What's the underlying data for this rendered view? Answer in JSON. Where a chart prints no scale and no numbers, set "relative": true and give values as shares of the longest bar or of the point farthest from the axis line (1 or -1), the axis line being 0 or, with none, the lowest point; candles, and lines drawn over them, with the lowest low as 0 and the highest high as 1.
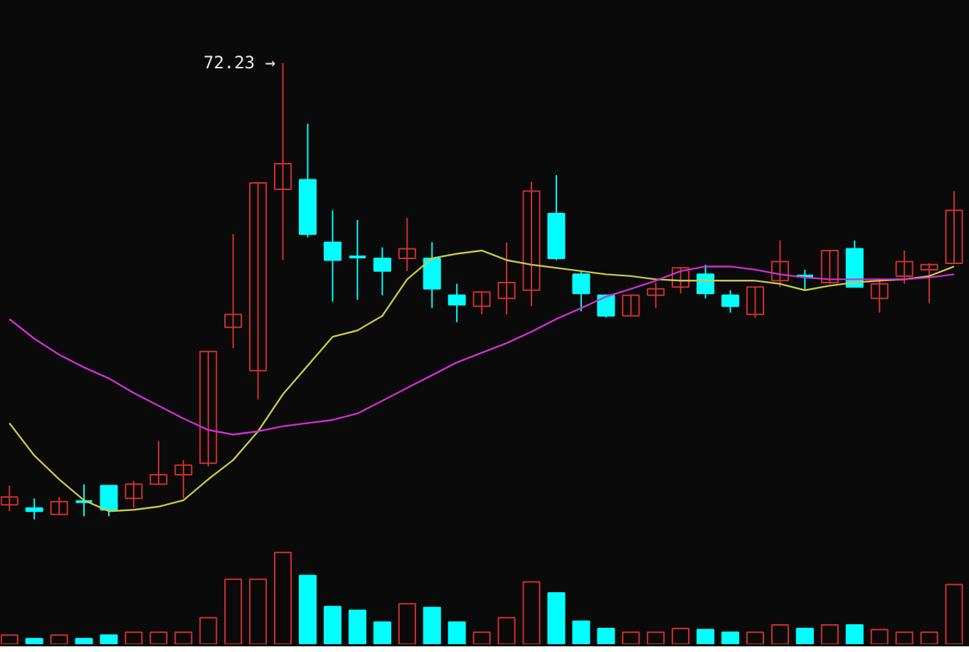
{
  "chart_data": [
    {
      "type": "candlestick",
      "relative": true,
      "categories": [
        null,
        null,
        null,
        null,
        null,
        null,
        null,
        null,
        null,
        null,
        null,
        null,
        null,
        null,
        null,
        null,
        null,
        null,
        null,
        null,
        null,
        null,
        null,
        null,
        null,
        null,
        null,
        null,
        null,
        null,
        null,
        null,
        null,
        null,
        null,
        null,
        null,
        null,
        null
      ],
      "annotations": [
        "72.23 →"
      ],
      "ohlc": [
        [
          0.032,
          0.074,
          0.018,
          0.049
        ],
        [
          0.025,
          0.046,
          0,
          0.018
        ],
        [
          0.011,
          0.049,
          0.011,
          0.039
        ],
        [
          0.039,
          0.077,
          0.007,
          0.035
        ],
        [
          0.074,
          0.074,
          0.007,
          0.021
        ],
        [
          0.046,
          0.084,
          0.025,
          0.077
        ],
        [
          0.077,
          0.172,
          0.077,
          0.098
        ],
        [
          0.098,
          0.13,
          0.046,
          0.119
        ],
        [
          0.123,
          0.368,
          0.116,
          0.368
        ],
        [
          0.421,
          0.625,
          0.375,
          0.449
        ],
        [
          0.326,
          0.737,
          0.263,
          0.737
        ],
        [
          0.723,
          1,
          0.568,
          0.779
        ],
        [
          0.744,
          0.867,
          0.618,
          0.625
        ],
        [
          0.607,
          0.677,
          0.477,
          0.568
        ],
        [
          0.575,
          0.656,
          0.481,
          0.572
        ],
        [
          0.572,
          0.596,
          0.491,
          0.544
        ],
        [
          0.572,
          0.66,
          0.544,
          0.593
        ],
        [
          0.572,
          0.607,
          0.463,
          0.505
        ],
        [
          0.491,
          0.516,
          0.432,
          0.47
        ],
        [
          0.467,
          0.498,
          0.449,
          0.498
        ],
        [
          0.484,
          0.607,
          0.449,
          0.519
        ],
        [
          0.502,
          0.74,
          0.467,
          0.719
        ],
        [
          0.67,
          0.754,
          0.568,
          0.572
        ],
        [
          0.537,
          0.544,
          0.456,
          0.495
        ],
        [
          0.491,
          0.491,
          0.442,
          0.446
        ],
        [
          0.446,
          0.491,
          0.446,
          0.491
        ],
        [
          0.491,
          0.519,
          0.463,
          0.505
        ],
        [
          0.509,
          0.551,
          0.495,
          0.551
        ],
        [
          0.537,
          0.558,
          0.484,
          0.495
        ],
        [
          0.491,
          0.502,
          0.453,
          0.467
        ],
        [
          0.449,
          0.509,
          0.442,
          0.509
        ],
        [
          0.523,
          0.611,
          0.509,
          0.565
        ],
        [
          0.533,
          0.547,
          0.502,
          0.53
        ],
        [
          0.519,
          0.589,
          0.516,
          0.589
        ],
        [
          0.593,
          0.611,
          0.509,
          0.509
        ],
        [
          0.484,
          0.526,
          0.453,
          0.516
        ],
        [
          0.533,
          0.589,
          0.516,
          0.565
        ],
        [
          0.547,
          0.561,
          0.474,
          0.558
        ],
        [
          0.561,
          0.719,
          0.561,
          0.677
        ]
      ],
      "colors": [
        "#d03030",
        "#00ffff",
        "#d03030",
        "#00ffff",
        "#00ffff",
        "#d03030",
        "#d03030",
        "#d03030",
        "#d03030",
        "#d03030",
        "#d03030",
        "#d03030",
        "#00ffff",
        "#00ffff",
        "#00ffff",
        "#00ffff",
        "#d03030",
        "#00ffff",
        "#00ffff",
        "#d03030",
        "#d03030",
        "#d03030",
        "#00ffff",
        "#00ffff",
        "#00ffff",
        "#d03030",
        "#d03030",
        "#d03030",
        "#00ffff",
        "#00ffff",
        "#d03030",
        "#d03030",
        "#00ffff",
        "#d03030",
        "#00ffff",
        "#d03030",
        "#d03030",
        "#d03030",
        "#d03030"
      ],
      "series": [
        {
          "type": "line",
          "color": "#c8c84a",
          "values": [
            0.211,
            0.14,
            0.088,
            0.042,
            0.018,
            0.021,
            0.028,
            0.042,
            0.088,
            0.13,
            0.193,
            0.274,
            0.337,
            0.4,
            0.414,
            0.446,
            0.526,
            0.572,
            0.582,
            0.589,
            0.568,
            0.558,
            0.551,
            0.544,
            0.537,
            0.533,
            0.526,
            0.523,
            0.523,
            0.523,
            0.523,
            0.516,
            0.502,
            0.512,
            0.519,
            0.523,
            0.526,
            0.533,
            0.554
          ]
        },
        {
          "type": "line",
          "color": "#d030d0",
          "values": [
            0.439,
            0.396,
            0.361,
            0.333,
            0.309,
            0.277,
            0.249,
            0.221,
            0.196,
            0.186,
            0.193,
            0.204,
            0.211,
            0.218,
            0.232,
            0.26,
            0.288,
            0.316,
            0.344,
            0.365,
            0.386,
            0.411,
            0.439,
            0.463,
            0.488,
            0.505,
            0.523,
            0.544,
            0.554,
            0.554,
            0.547,
            0.537,
            0.53,
            0.526,
            0.526,
            0.526,
            0.526,
            0.53,
            0.537
          ]
        }
      ]
    },
    {
      "type": "bar",
      "relative": true,
      "categories": [
        null,
        null,
        null,
        null,
        null,
        null,
        null,
        null,
        null,
        null,
        null,
        null,
        null,
        null,
        null,
        null,
        null,
        null,
        null,
        null,
        null,
        null,
        null,
        null,
        null,
        null,
        null,
        null,
        null,
        null,
        null,
        null,
        null,
        null,
        null,
        null,
        null,
        null,
        null
      ],
      "values": [
        0.1,
        0.06,
        0.1,
        0.06,
        0.1,
        0.13,
        0.13,
        0.13,
        0.29,
        0.71,
        0.71,
        1,
        0.75,
        0.41,
        0.37,
        0.24,
        0.44,
        0.4,
        0.24,
        0.13,
        0.29,
        0.68,
        0.56,
        0.25,
        0.17,
        0.13,
        0.13,
        0.17,
        0.16,
        0.13,
        0.13,
        0.21,
        0.17,
        0.21,
        0.21,
        0.16,
        0.13,
        0.13,
        0.65
      ],
      "colors": [
        "#d03030",
        "#00ffff",
        "#d03030",
        "#00ffff",
        "#00ffff",
        "#d03030",
        "#d03030",
        "#d03030",
        "#d03030",
        "#d03030",
        "#d03030",
        "#d03030",
        "#00ffff",
        "#00ffff",
        "#00ffff",
        "#00ffff",
        "#d03030",
        "#00ffff",
        "#00ffff",
        "#d03030",
        "#d03030",
        "#d03030",
        "#00ffff",
        "#00ffff",
        "#00ffff",
        "#d03030",
        "#d03030",
        "#d03030",
        "#00ffff",
        "#00ffff",
        "#d03030",
        "#d03030",
        "#00ffff",
        "#d03030",
        "#00ffff",
        "#d03030",
        "#d03030",
        "#d03030",
        "#d03030"
      ]
    }
  ]
}
